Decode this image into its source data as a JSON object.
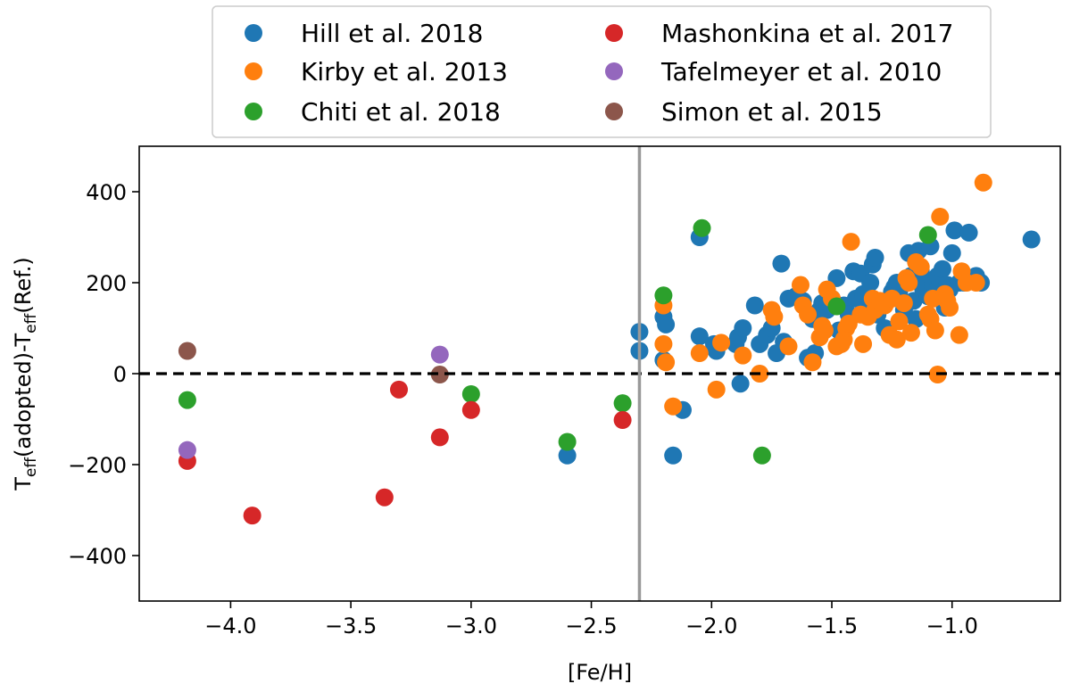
{
  "chart_data": {
    "type": "scatter",
    "title": "",
    "xlabel": "[Fe/H]",
    "ylabel": {
      "pre": "T",
      "sub1": "eff",
      "mid": "(adopted)-T",
      "sub2": "eff",
      "post": "(Ref.)"
    },
    "xlim": [
      -4.38,
      -0.55
    ],
    "ylim": [
      -500,
      500
    ],
    "xticks": [
      -4.0,
      -3.5,
      -3.0,
      -2.5,
      -2.0,
      -1.5,
      -1.0
    ],
    "xtick_labels": [
      "−4.0",
      "−3.5",
      "−3.0",
      "−2.5",
      "−2.0",
      "−1.5",
      "−1.0"
    ],
    "yticks": [
      -400,
      -200,
      0,
      200,
      400
    ],
    "ytick_labels": [
      "−400",
      "−200",
      "0",
      "200",
      "400"
    ],
    "reference_lines": {
      "horizontal_dashed_y": 0,
      "vertical_solid_x": -2.3
    },
    "legend_position": "above-plot",
    "series": [
      {
        "name": "Hill et al. 2018",
        "color": "#1f77b4",
        "points": [
          [
            -2.6,
            -180
          ],
          [
            -2.16,
            -180
          ],
          [
            -2.12,
            -80
          ],
          [
            -1.88,
            -22
          ],
          [
            -2.3,
            50
          ],
          [
            -2.3,
            92
          ],
          [
            -2.2,
            125
          ],
          [
            -2.19,
            108
          ],
          [
            -2.2,
            30
          ],
          [
            -2.05,
            300
          ],
          [
            -2.05,
            82
          ],
          [
            -1.99,
            65
          ],
          [
            -1.98,
            50
          ],
          [
            -1.9,
            65
          ],
          [
            -1.89,
            80
          ],
          [
            -1.87,
            100
          ],
          [
            -1.82,
            150
          ],
          [
            -1.8,
            65
          ],
          [
            -1.77,
            85
          ],
          [
            -1.75,
            100
          ],
          [
            -1.73,
            45
          ],
          [
            -1.71,
            242
          ],
          [
            -1.7,
            70
          ],
          [
            -1.68,
            165
          ],
          [
            -1.65,
            170
          ],
          [
            -1.62,
            160
          ],
          [
            -1.6,
            35
          ],
          [
            -1.58,
            120
          ],
          [
            -1.57,
            45
          ],
          [
            -1.55,
            140
          ],
          [
            -1.54,
            155
          ],
          [
            -1.52,
            140
          ],
          [
            -1.5,
            165
          ],
          [
            -1.48,
            210
          ],
          [
            -1.47,
            95
          ],
          [
            -1.45,
            150
          ],
          [
            -1.43,
            130
          ],
          [
            -1.41,
            225
          ],
          [
            -1.4,
            165
          ],
          [
            -1.38,
            220
          ],
          [
            -1.37,
            175
          ],
          [
            -1.36,
            140
          ],
          [
            -1.34,
            200
          ],
          [
            -1.33,
            240
          ],
          [
            -1.32,
            255
          ],
          [
            -1.31,
            130
          ],
          [
            -1.3,
            155
          ],
          [
            -1.28,
            100
          ],
          [
            -1.25,
            180
          ],
          [
            -1.24,
            190
          ],
          [
            -1.23,
            200
          ],
          [
            -1.22,
            180
          ],
          [
            -1.2,
            140
          ],
          [
            -1.19,
            155
          ],
          [
            -1.18,
            265
          ],
          [
            -1.17,
            215
          ],
          [
            -1.16,
            160
          ],
          [
            -1.15,
            120
          ],
          [
            -1.14,
            270
          ],
          [
            -1.13,
            225
          ],
          [
            -1.12,
            185
          ],
          [
            -1.11,
            200
          ],
          [
            -1.1,
            170
          ],
          [
            -1.09,
            280
          ],
          [
            -1.08,
            195
          ],
          [
            -1.07,
            180
          ],
          [
            -1.06,
            215
          ],
          [
            -1.05,
            200
          ],
          [
            -1.04,
            230
          ],
          [
            -1.03,
            145
          ],
          [
            -1.02,
            195
          ],
          [
            -1.01,
            185
          ],
          [
            -1.0,
            265
          ],
          [
            -0.99,
            315
          ],
          [
            -0.97,
            200
          ],
          [
            -0.95,
            200
          ],
          [
            -0.93,
            310
          ],
          [
            -0.92,
            205
          ],
          [
            -0.9,
            215
          ],
          [
            -0.88,
            200
          ],
          [
            -0.67,
            295
          ]
        ]
      },
      {
        "name": "Kirby et al. 2013",
        "color": "#ff7f0e",
        "points": [
          [
            -2.2,
            150
          ],
          [
            -2.2,
            65
          ],
          [
            -2.19,
            25
          ],
          [
            -2.16,
            -72
          ],
          [
            -2.05,
            45
          ],
          [
            -1.98,
            -35
          ],
          [
            -1.96,
            68
          ],
          [
            -1.87,
            40
          ],
          [
            -1.8,
            0
          ],
          [
            -1.75,
            140
          ],
          [
            -1.74,
            125
          ],
          [
            -1.68,
            60
          ],
          [
            -1.63,
            195
          ],
          [
            -1.62,
            150
          ],
          [
            -1.6,
            130
          ],
          [
            -1.58,
            25
          ],
          [
            -1.55,
            80
          ],
          [
            -1.54,
            105
          ],
          [
            -1.53,
            95
          ],
          [
            -1.52,
            185
          ],
          [
            -1.5,
            165
          ],
          [
            -1.48,
            60
          ],
          [
            -1.46,
            65
          ],
          [
            -1.45,
            75
          ],
          [
            -1.44,
            100
          ],
          [
            -1.43,
            110
          ],
          [
            -1.42,
            290
          ],
          [
            -1.38,
            130
          ],
          [
            -1.37,
            65
          ],
          [
            -1.35,
            125
          ],
          [
            -1.33,
            165
          ],
          [
            -1.32,
            140
          ],
          [
            -1.3,
            160
          ],
          [
            -1.28,
            150
          ],
          [
            -1.26,
            85
          ],
          [
            -1.25,
            165
          ],
          [
            -1.23,
            75
          ],
          [
            -1.22,
            115
          ],
          [
            -1.2,
            155
          ],
          [
            -1.19,
            210
          ],
          [
            -1.18,
            200
          ],
          [
            -1.17,
            90
          ],
          [
            -1.15,
            245
          ],
          [
            -1.13,
            235
          ],
          [
            -1.1,
            130
          ],
          [
            -1.09,
            120
          ],
          [
            -1.08,
            165
          ],
          [
            -1.07,
            95
          ],
          [
            -1.06,
            -2
          ],
          [
            -1.05,
            345
          ],
          [
            -1.03,
            175
          ],
          [
            -1.02,
            160
          ],
          [
            -1.01,
            145
          ],
          [
            -0.97,
            85
          ],
          [
            -0.96,
            225
          ],
          [
            -0.94,
            200
          ],
          [
            -0.9,
            200
          ],
          [
            -0.87,
            420
          ]
        ]
      },
      {
        "name": "Chiti et al. 2018",
        "color": "#2ca02c",
        "points": [
          [
            -4.18,
            -58
          ],
          [
            -3.0,
            -45
          ],
          [
            -2.6,
            -150
          ],
          [
            -2.37,
            -65
          ],
          [
            -2.2,
            172
          ],
          [
            -2.04,
            320
          ],
          [
            -1.79,
            -180
          ],
          [
            -1.48,
            148
          ],
          [
            -1.1,
            305
          ]
        ]
      },
      {
        "name": "Mashonkina et al. 2017",
        "color": "#d62728",
        "points": [
          [
            -4.18,
            -192
          ],
          [
            -3.91,
            -312
          ],
          [
            -3.36,
            -272
          ],
          [
            -3.3,
            -35
          ],
          [
            -3.13,
            -140
          ],
          [
            -3.0,
            -80
          ],
          [
            -2.37,
            -102
          ]
        ]
      },
      {
        "name": "Tafelmeyer et al. 2010",
        "color": "#9467bd",
        "points": [
          [
            -4.18,
            -168
          ],
          [
            -3.13,
            42
          ]
        ]
      },
      {
        "name": "Simon et al. 2015",
        "color": "#8c564b",
        "points": [
          [
            -4.18,
            50
          ],
          [
            -3.13,
            -2
          ]
        ]
      }
    ]
  }
}
